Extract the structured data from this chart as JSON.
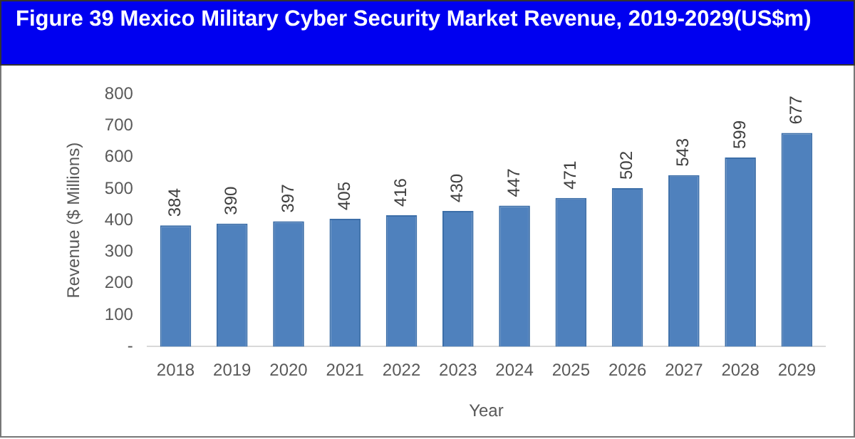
{
  "chart_data": {
    "type": "bar",
    "title": "Figure 39 Mexico Military Cyber Security Market Revenue, 2019-2029(US$m)",
    "xlabel": "Year",
    "ylabel": "Revenue ($ Millions)",
    "categories": [
      "2018",
      "2019",
      "2020",
      "2021",
      "2022",
      "2023",
      "2024",
      "2025",
      "2026",
      "2027",
      "2028",
      "2029"
    ],
    "values": [
      384,
      390,
      397,
      405,
      416,
      430,
      447,
      471,
      502,
      543,
      599,
      677
    ],
    "color": "#4f81bd",
    "ylim": [
      0,
      800
    ],
    "yticks": [
      {
        "value": 0,
        "label": "-"
      },
      100,
      200,
      300,
      400,
      500,
      600,
      700,
      800
    ],
    "grid": false,
    "legend": false,
    "data_labels": true
  }
}
